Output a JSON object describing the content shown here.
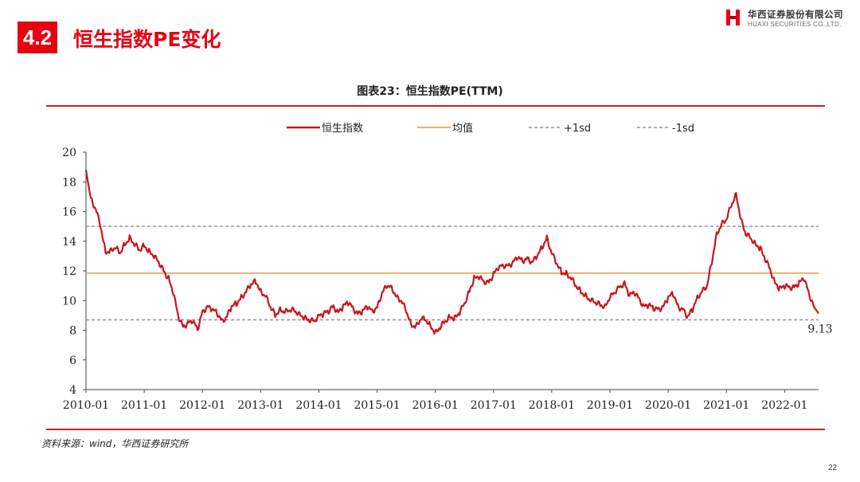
{
  "header": {
    "section_number": "4.2",
    "page_title": "恒生指数PE变化",
    "logo_cn": "华西证券股份有限公司",
    "logo_en": "HUAXI SECURITIES CO.,LTD."
  },
  "chart_title": "图表23：恒生指数PE(TTM)",
  "source_note": "资料来源：wind，华西证券研究所",
  "page_number": "22",
  "colors": {
    "accent": "#e60012",
    "series": "#c8161d",
    "mean": "#f0a050",
    "sd": "#999999",
    "rule": "#c0202a"
  },
  "chart_data": {
    "type": "line",
    "title": "图表23：恒生指数PE(TTM)",
    "xlabel": "",
    "ylabel": "",
    "ylim": [
      4,
      20
    ],
    "yticks": [
      "4",
      "6",
      "8",
      "10",
      "12",
      "14",
      "16",
      "18",
      "20"
    ],
    "xlim": [
      "2010-01",
      "2022-08"
    ],
    "xticks": [
      "2010-01",
      "2011-01",
      "2012-01",
      "2013-01",
      "2014-01",
      "2015-01",
      "2016-01",
      "2017-01",
      "2018-01",
      "2019-01",
      "2020-01",
      "2021-01",
      "2022-01"
    ],
    "legend": [
      "恒生指数",
      "均值",
      "+1sd",
      "-1sd"
    ],
    "legend_position": "top",
    "grid": false,
    "series": [
      {
        "name": "恒生指数",
        "x": [
          "2010-01",
          "2010-02",
          "2010-03",
          "2010-04",
          "2010-05",
          "2010-06",
          "2010-07",
          "2010-08",
          "2010-09",
          "2010-10",
          "2010-11",
          "2010-12",
          "2011-01",
          "2011-02",
          "2011-03",
          "2011-04",
          "2011-05",
          "2011-06",
          "2011-07",
          "2011-08",
          "2011-09",
          "2011-10",
          "2011-11",
          "2011-12",
          "2012-01",
          "2012-02",
          "2012-03",
          "2012-04",
          "2012-05",
          "2012-06",
          "2012-07",
          "2012-08",
          "2012-09",
          "2012-10",
          "2012-11",
          "2012-12",
          "2013-01",
          "2013-02",
          "2013-03",
          "2013-04",
          "2013-05",
          "2013-06",
          "2013-07",
          "2013-08",
          "2013-09",
          "2013-10",
          "2013-11",
          "2013-12",
          "2014-01",
          "2014-02",
          "2014-03",
          "2014-04",
          "2014-05",
          "2014-06",
          "2014-07",
          "2014-08",
          "2014-09",
          "2014-10",
          "2014-11",
          "2014-12",
          "2015-01",
          "2015-02",
          "2015-03",
          "2015-04",
          "2015-05",
          "2015-06",
          "2015-07",
          "2015-08",
          "2015-09",
          "2015-10",
          "2015-11",
          "2015-12",
          "2016-01",
          "2016-02",
          "2016-03",
          "2016-04",
          "2016-05",
          "2016-06",
          "2016-07",
          "2016-08",
          "2016-09",
          "2016-10",
          "2016-11",
          "2016-12",
          "2017-01",
          "2017-02",
          "2017-03",
          "2017-04",
          "2017-05",
          "2017-06",
          "2017-07",
          "2017-08",
          "2017-09",
          "2017-10",
          "2017-11",
          "2017-12",
          "2018-01",
          "2018-02",
          "2018-03",
          "2018-04",
          "2018-05",
          "2018-06",
          "2018-07",
          "2018-08",
          "2018-09",
          "2018-10",
          "2018-11",
          "2018-12",
          "2019-01",
          "2019-02",
          "2019-03",
          "2019-04",
          "2019-05",
          "2019-06",
          "2019-07",
          "2019-08",
          "2019-09",
          "2019-10",
          "2019-11",
          "2019-12",
          "2020-01",
          "2020-02",
          "2020-03",
          "2020-04",
          "2020-05",
          "2020-06",
          "2020-07",
          "2020-08",
          "2020-09",
          "2020-10",
          "2020-11",
          "2020-12",
          "2021-01",
          "2021-02",
          "2021-03",
          "2021-04",
          "2021-05",
          "2021-06",
          "2021-07",
          "2021-08",
          "2021-09",
          "2021-10",
          "2021-11",
          "2021-12",
          "2022-01",
          "2022-02",
          "2022-03",
          "2022-04",
          "2022-05",
          "2022-06",
          "2022-07",
          "2022-08"
        ],
        "values": [
          18.8,
          16.8,
          16.2,
          15.0,
          13.3,
          13.3,
          13.6,
          13.2,
          13.8,
          14.2,
          13.8,
          13.4,
          13.7,
          13.3,
          13.0,
          12.6,
          12.0,
          11.5,
          10.5,
          9.0,
          8.2,
          8.5,
          8.6,
          8.1,
          9.2,
          9.6,
          9.4,
          9.2,
          8.6,
          8.9,
          9.6,
          9.8,
          10.2,
          10.6,
          11.1,
          11.3,
          10.6,
          10.3,
          9.6,
          9.0,
          9.4,
          9.2,
          9.4,
          9.3,
          9.1,
          8.8,
          8.7,
          8.6,
          9.0,
          9.1,
          9.3,
          9.6,
          9.2,
          9.6,
          9.9,
          9.5,
          9.1,
          9.3,
          9.6,
          9.3,
          9.5,
          10.5,
          11.0,
          10.9,
          10.2,
          10.0,
          9.3,
          8.4,
          8.2,
          8.8,
          8.7,
          8.3,
          7.8,
          8.2,
          8.6,
          8.9,
          8.8,
          9.2,
          9.8,
          10.6,
          11.5,
          11.6,
          11.3,
          11.2,
          11.8,
          12.2,
          12.4,
          12.3,
          12.6,
          12.9,
          12.7,
          12.8,
          12.6,
          13.0,
          13.6,
          14.2,
          13.2,
          12.5,
          11.9,
          11.8,
          11.5,
          11.0,
          10.6,
          10.3,
          10.0,
          9.9,
          9.7,
          9.6,
          10.2,
          10.6,
          10.9,
          11.2,
          10.3,
          10.6,
          10.1,
          9.6,
          9.7,
          9.5,
          9.4,
          9.6,
          10.2,
          10.5,
          9.6,
          9.4,
          8.9,
          9.4,
          10.2,
          10.6,
          11.0,
          12.6,
          14.5,
          15.1,
          15.5,
          16.4,
          17.2,
          15.4,
          14.5,
          14.2,
          13.8,
          13.5,
          12.8,
          12.1,
          11.2,
          10.8,
          11.0,
          10.9,
          10.9,
          11.2,
          11.5,
          10.5,
          9.6,
          9.13
        ]
      },
      {
        "name": "均值",
        "value": 11.85
      },
      {
        "name": "+1sd",
        "value": 15.0
      },
      {
        "name": "-1sd",
        "value": 8.7
      }
    ],
    "annotations": [
      {
        "text": "9.13",
        "x": "2022-08",
        "y": 9.13
      }
    ]
  }
}
